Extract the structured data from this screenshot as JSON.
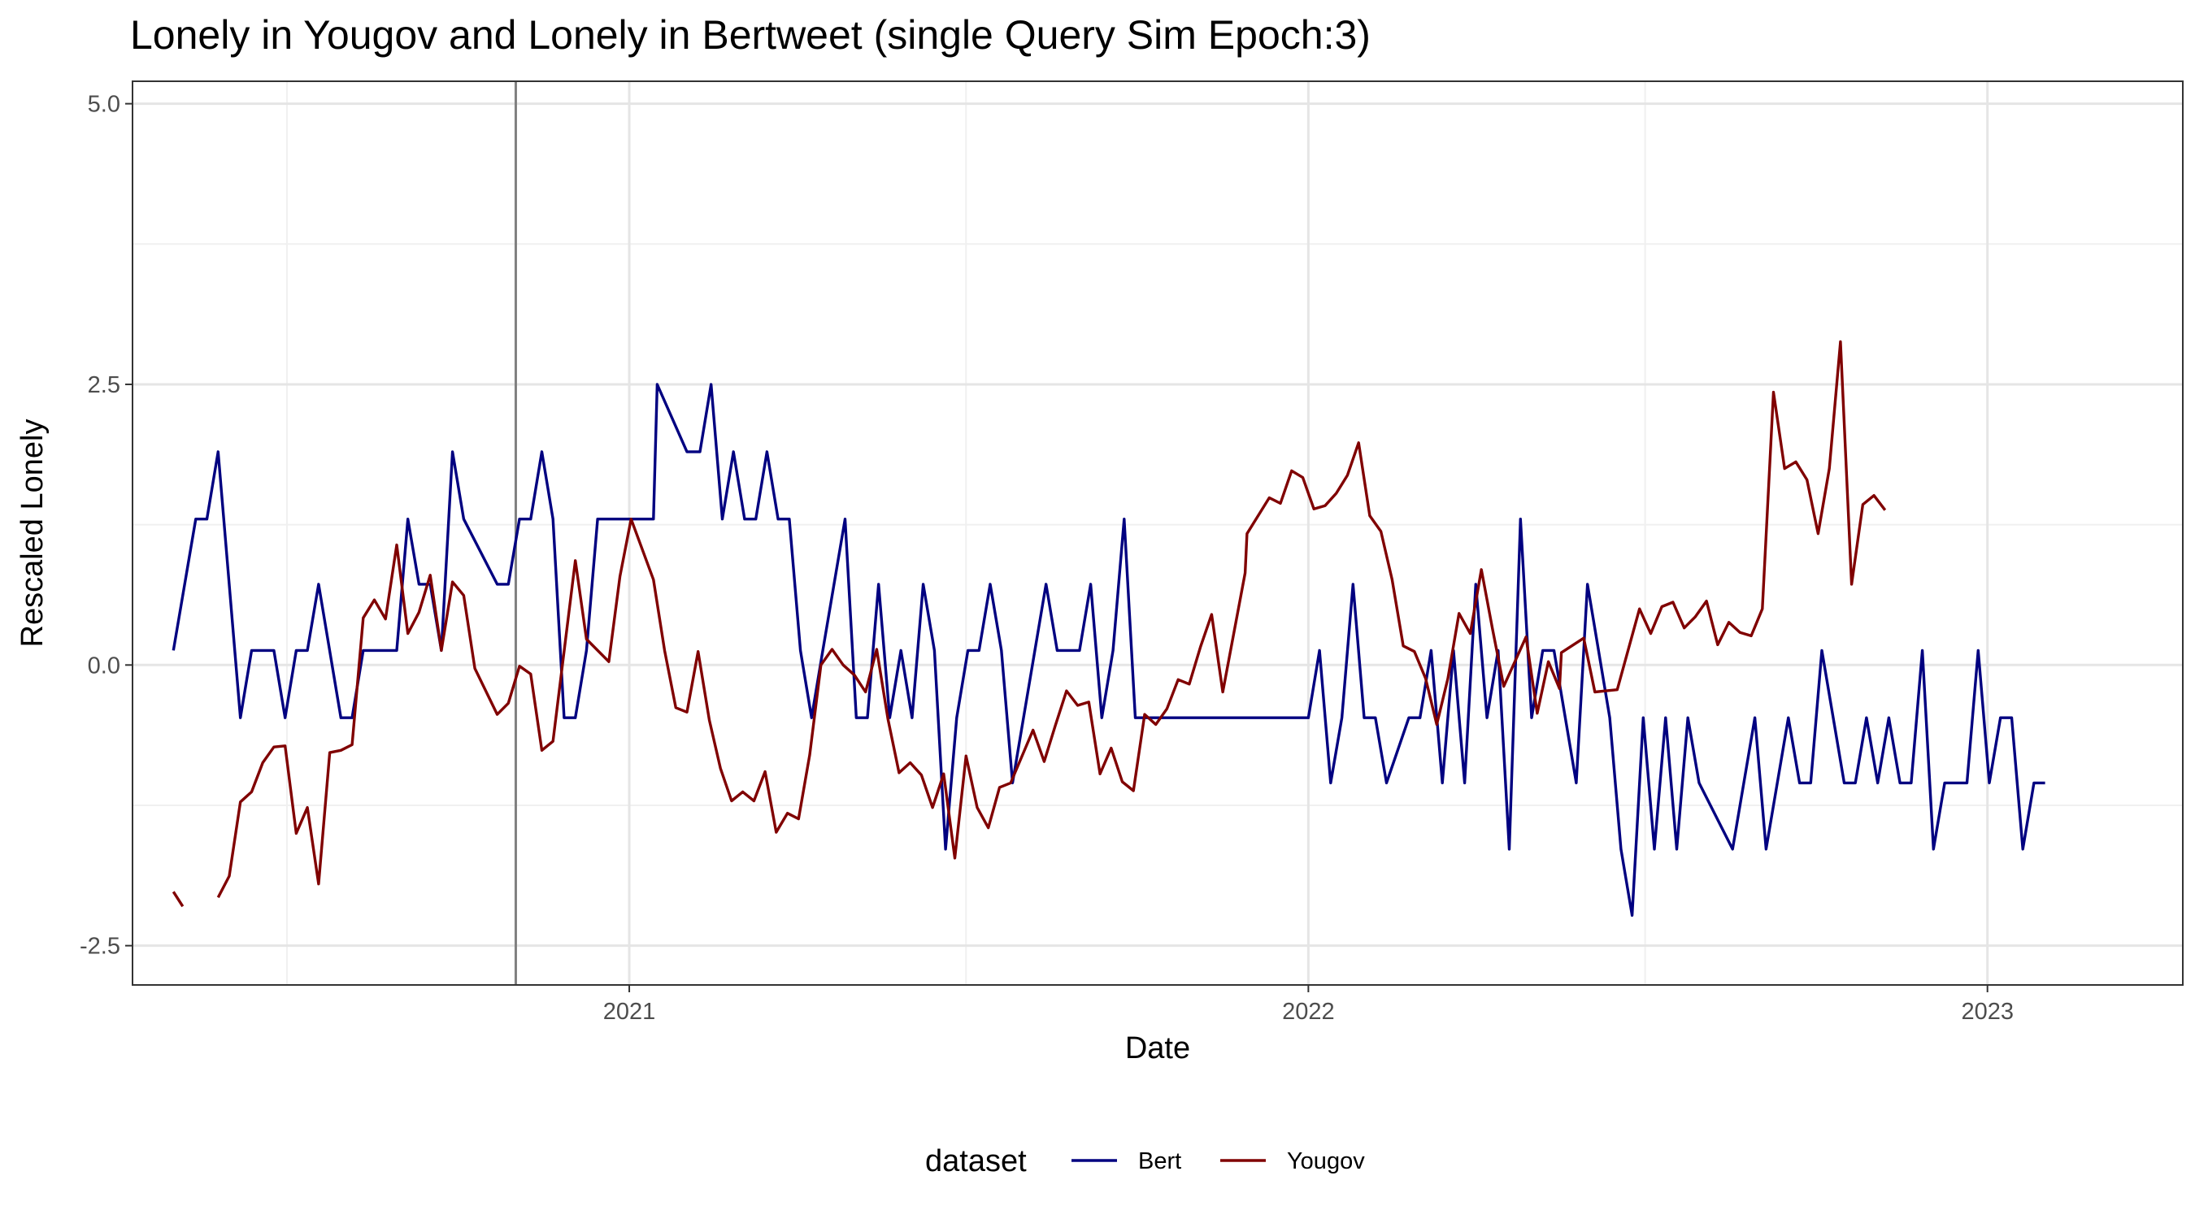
{
  "chart_data": {
    "type": "line",
    "title": "Lonely in Yougov and Lonely in Bertweet (single Query Sim Epoch:3)",
    "xlabel": "Date",
    "ylabel": "Rescaled  Lonely",
    "xlim": [
      "2020-04-09",
      "2023-04-16"
    ],
    "ylim": [
      -2.85,
      5.2
    ],
    "yticks": [
      -2.5,
      0.0,
      2.5,
      5.0
    ],
    "ytick_labels": [
      "-2.5",
      "0.0",
      "2.5",
      "5.0"
    ],
    "xticks": [
      "2021-01-01",
      "2022-01-01",
      "2023-01-01"
    ],
    "xtick_labels": [
      "2021",
      "2022",
      "2023"
    ],
    "vline": "2020-11-01",
    "grid": true,
    "legend": {
      "title": "dataset",
      "position": "bottom"
    },
    "series": [
      {
        "name": "Bert",
        "color": "#000080",
        "points": [
          [
            "2020-05-01",
            0.13
          ],
          [
            "2020-05-13",
            1.3
          ],
          [
            "2020-05-19",
            1.3
          ],
          [
            "2020-05-25",
            1.9
          ],
          [
            "2020-06-06",
            -0.47
          ],
          [
            "2020-06-12",
            0.13
          ],
          [
            "2020-06-24",
            0.13
          ],
          [
            "2020-06-30",
            -0.47
          ],
          [
            "2020-07-06",
            0.13
          ],
          [
            "2020-07-12",
            0.13
          ],
          [
            "2020-07-18",
            0.72
          ],
          [
            "2020-07-30",
            -0.47
          ],
          [
            "2020-08-05",
            -0.47
          ],
          [
            "2020-08-11",
            0.13
          ],
          [
            "2020-08-29",
            0.13
          ],
          [
            "2020-09-04",
            1.3
          ],
          [
            "2020-09-10",
            0.72
          ],
          [
            "2020-09-16",
            0.72
          ],
          [
            "2020-09-22",
            0.13
          ],
          [
            "2020-09-28",
            1.9
          ],
          [
            "2020-10-04",
            1.3
          ],
          [
            "2020-10-22",
            0.72
          ],
          [
            "2020-10-28",
            0.72
          ],
          [
            "2020-11-03",
            1.3
          ],
          [
            "2020-11-09",
            1.3
          ],
          [
            "2020-11-15",
            1.9
          ],
          [
            "2020-11-21",
            1.3
          ],
          [
            "2020-11-27",
            -0.47
          ],
          [
            "2020-12-03",
            -0.47
          ],
          [
            "2020-12-09",
            0.13
          ],
          [
            "2020-12-15",
            1.3
          ],
          [
            "2021-01-14",
            1.3
          ],
          [
            "2021-01-16",
            2.5
          ],
          [
            "2021-02-01",
            1.9
          ],
          [
            "2021-02-08",
            1.9
          ],
          [
            "2021-02-14",
            2.5
          ],
          [
            "2021-02-20",
            1.3
          ],
          [
            "2021-02-26",
            1.9
          ],
          [
            "2021-03-04",
            1.3
          ],
          [
            "2021-03-10",
            1.3
          ],
          [
            "2021-03-16",
            1.9
          ],
          [
            "2021-03-22",
            1.3
          ],
          [
            "2021-03-28",
            1.3
          ],
          [
            "2021-04-03",
            0.13
          ],
          [
            "2021-04-09",
            -0.47
          ],
          [
            "2021-04-15",
            0.13
          ],
          [
            "2021-04-27",
            1.3
          ],
          [
            "2021-05-03",
            -0.47
          ],
          [
            "2021-05-09",
            -0.47
          ],
          [
            "2021-05-15",
            0.72
          ],
          [
            "2021-05-21",
            -0.47
          ],
          [
            "2021-05-27",
            0.13
          ],
          [
            "2021-06-02",
            -0.47
          ],
          [
            "2021-06-08",
            0.72
          ],
          [
            "2021-06-14",
            0.13
          ],
          [
            "2021-06-20",
            -1.64
          ],
          [
            "2021-06-26",
            -0.47
          ],
          [
            "2021-07-02",
            0.13
          ],
          [
            "2021-07-08",
            0.13
          ],
          [
            "2021-07-14",
            0.72
          ],
          [
            "2021-07-20",
            0.13
          ],
          [
            "2021-07-26",
            -1.05
          ],
          [
            "2021-08-13",
            0.72
          ],
          [
            "2021-08-19",
            0.13
          ],
          [
            "2021-08-31",
            0.13
          ],
          [
            "2021-09-06",
            0.72
          ],
          [
            "2021-09-12",
            -0.47
          ],
          [
            "2021-09-18",
            0.13
          ],
          [
            "2021-09-24",
            1.3
          ],
          [
            "2021-09-30",
            -0.47
          ],
          [
            "2021-12-19",
            -0.47
          ],
          [
            "2022-01-01",
            -0.47
          ],
          [
            "2022-01-07",
            0.13
          ],
          [
            "2022-01-13",
            -1.05
          ],
          [
            "2022-01-19",
            -0.47
          ],
          [
            "2022-01-25",
            0.72
          ],
          [
            "2022-01-31",
            -0.47
          ],
          [
            "2022-02-06",
            -0.47
          ],
          [
            "2022-02-12",
            -1.05
          ],
          [
            "2022-02-24",
            -0.47
          ],
          [
            "2022-03-02",
            -0.47
          ],
          [
            "2022-03-08",
            0.13
          ],
          [
            "2022-03-14",
            -1.05
          ],
          [
            "2022-03-20",
            0.13
          ],
          [
            "2022-03-26",
            -1.05
          ],
          [
            "2022-04-01",
            0.72
          ],
          [
            "2022-04-07",
            -0.47
          ],
          [
            "2022-04-13",
            0.13
          ],
          [
            "2022-04-19",
            -1.64
          ],
          [
            "2022-04-25",
            1.3
          ],
          [
            "2022-05-01",
            -0.47
          ],
          [
            "2022-05-07",
            0.13
          ],
          [
            "2022-05-13",
            0.13
          ],
          [
            "2022-05-25",
            -1.05
          ],
          [
            "2022-05-31",
            0.72
          ],
          [
            "2022-06-12",
            -0.47
          ],
          [
            "2022-06-18",
            -1.64
          ],
          [
            "2022-06-24",
            -2.23
          ],
          [
            "2022-06-30",
            -0.47
          ],
          [
            "2022-07-06",
            -1.64
          ],
          [
            "2022-07-12",
            -0.47
          ],
          [
            "2022-07-18",
            -1.64
          ],
          [
            "2022-07-24",
            -0.47
          ],
          [
            "2022-07-30",
            -1.05
          ],
          [
            "2022-08-17",
            -1.64
          ],
          [
            "2022-08-29",
            -0.47
          ],
          [
            "2022-09-04",
            -1.64
          ],
          [
            "2022-09-16",
            -0.47
          ],
          [
            "2022-09-22",
            -1.05
          ],
          [
            "2022-09-28",
            -1.05
          ],
          [
            "2022-10-04",
            0.13
          ],
          [
            "2022-10-16",
            -1.05
          ],
          [
            "2022-10-22",
            -1.05
          ],
          [
            "2022-10-28",
            -0.47
          ],
          [
            "2022-11-03",
            -1.05
          ],
          [
            "2022-11-09",
            -0.47
          ],
          [
            "2022-11-15",
            -1.05
          ],
          [
            "2022-11-21",
            -1.05
          ],
          [
            "2022-11-27",
            0.13
          ],
          [
            "2022-12-03",
            -1.64
          ],
          [
            "2022-12-09",
            -1.05
          ],
          [
            "2022-12-21",
            -1.05
          ],
          [
            "2022-12-27",
            0.13
          ],
          [
            "2023-01-02",
            -1.05
          ],
          [
            "2023-01-08",
            -0.47
          ],
          [
            "2023-01-14",
            -0.47
          ],
          [
            "2023-01-20",
            -1.64
          ],
          [
            "2023-01-26",
            -1.05
          ],
          [
            "2023-02-01",
            -1.05
          ]
        ]
      },
      {
        "name": "Yougov",
        "color": "#800000",
        "points": [
          [
            "2020-05-01",
            -2.02
          ],
          [
            "2020-05-06",
            -2.15
          ],
          null,
          [
            "2020-05-25",
            -2.07
          ],
          [
            "2020-05-31",
            -1.88
          ],
          [
            "2020-06-06",
            -1.22
          ],
          [
            "2020-06-12",
            -1.13
          ],
          [
            "2020-06-18",
            -0.87
          ],
          [
            "2020-06-24",
            -0.73
          ],
          [
            "2020-06-30",
            -0.72
          ],
          [
            "2020-07-06",
            -1.5
          ],
          [
            "2020-07-12",
            -1.27
          ],
          [
            "2020-07-18",
            -1.95
          ],
          [
            "2020-07-24",
            -0.78
          ],
          [
            "2020-07-30",
            -0.76
          ],
          [
            "2020-08-05",
            -0.71
          ],
          [
            "2020-08-11",
            0.42
          ],
          [
            "2020-08-17",
            0.58
          ],
          [
            "2020-08-23",
            0.41
          ],
          [
            "2020-08-29",
            1.07
          ],
          [
            "2020-09-04",
            0.28
          ],
          [
            "2020-09-10",
            0.47
          ],
          [
            "2020-09-16",
            0.8
          ],
          [
            "2020-09-22",
            0.13
          ],
          [
            "2020-09-28",
            0.74
          ],
          [
            "2020-10-04",
            0.62
          ],
          [
            "2020-10-10",
            -0.03
          ],
          [
            "2020-10-22",
            -0.44
          ],
          [
            "2020-10-28",
            -0.34
          ],
          [
            "2020-11-03",
            -0.01
          ],
          [
            "2020-11-09",
            -0.08
          ],
          [
            "2020-11-15",
            -0.76
          ],
          [
            "2020-11-21",
            -0.68
          ],
          [
            "2020-12-03",
            0.93
          ],
          [
            "2020-12-09",
            0.23
          ],
          [
            "2020-12-21",
            0.03
          ],
          [
            "2020-12-27",
            0.79
          ],
          [
            "2021-01-02",
            1.3
          ],
          [
            "2021-01-14",
            0.76
          ],
          [
            "2021-01-20",
            0.13
          ],
          [
            "2021-01-26",
            -0.38
          ],
          [
            "2021-02-01",
            -0.42
          ],
          [
            "2021-02-07",
            0.12
          ],
          [
            "2021-02-13",
            -0.49
          ],
          [
            "2021-02-19",
            -0.92
          ],
          [
            "2021-02-25",
            -1.21
          ],
          [
            "2021-03-03",
            -1.13
          ],
          [
            "2021-03-09",
            -1.21
          ],
          [
            "2021-03-15",
            -0.95
          ],
          [
            "2021-03-21",
            -1.49
          ],
          [
            "2021-03-27",
            -1.32
          ],
          [
            "2021-04-02",
            -1.37
          ],
          [
            "2021-04-08",
            -0.8
          ],
          [
            "2021-04-14",
            0.0
          ],
          [
            "2021-04-20",
            0.14
          ],
          [
            "2021-04-26",
            0.0
          ],
          [
            "2021-05-02",
            -0.09
          ],
          [
            "2021-05-08",
            -0.24
          ],
          [
            "2021-05-14",
            0.14
          ],
          [
            "2021-05-20",
            -0.48
          ],
          [
            "2021-05-26",
            -0.96
          ],
          [
            "2021-06-01",
            -0.87
          ],
          [
            "2021-06-07",
            -0.98
          ],
          [
            "2021-06-13",
            -1.27
          ],
          [
            "2021-06-19",
            -0.97
          ],
          [
            "2021-06-25",
            -1.72
          ],
          [
            "2021-07-01",
            -0.81
          ],
          [
            "2021-07-07",
            -1.27
          ],
          [
            "2021-07-13",
            -1.45
          ],
          [
            "2021-07-19",
            -1.09
          ],
          [
            "2021-07-25",
            -1.05
          ],
          [
            "2021-08-06",
            -0.58
          ],
          [
            "2021-08-12",
            -0.86
          ],
          [
            "2021-08-18",
            -0.54
          ],
          [
            "2021-08-24",
            -0.23
          ],
          [
            "2021-08-30",
            -0.36
          ],
          [
            "2021-09-05",
            -0.33
          ],
          [
            "2021-09-11",
            -0.97
          ],
          [
            "2021-09-17",
            -0.74
          ],
          [
            "2021-09-23",
            -1.04
          ],
          [
            "2021-09-29",
            -1.12
          ],
          [
            "2021-10-05",
            -0.44
          ],
          [
            "2021-10-11",
            -0.53
          ],
          [
            "2021-10-17",
            -0.39
          ],
          [
            "2021-10-23",
            -0.13
          ],
          [
            "2021-10-29",
            -0.17
          ],
          [
            "2021-11-04",
            0.16
          ],
          [
            "2021-11-10",
            0.45
          ],
          [
            "2021-11-16",
            -0.24
          ],
          [
            "2021-11-28",
            0.82
          ],
          [
            "2021-11-29",
            1.17
          ],
          [
            "2021-12-11",
            1.49
          ],
          [
            "2021-12-17",
            1.44
          ],
          [
            "2021-12-23",
            1.73
          ],
          [
            "2021-12-29",
            1.67
          ],
          [
            "2022-01-04",
            1.39
          ],
          [
            "2022-01-10",
            1.42
          ],
          [
            "2022-01-16",
            1.53
          ],
          [
            "2022-01-22",
            1.69
          ],
          [
            "2022-01-28",
            1.98
          ],
          [
            "2022-02-03",
            1.33
          ],
          [
            "2022-02-09",
            1.19
          ],
          [
            "2022-02-15",
            0.76
          ],
          [
            "2022-02-21",
            0.17
          ],
          [
            "2022-02-27",
            0.12
          ],
          [
            "2022-03-05",
            -0.12
          ],
          [
            "2022-03-11",
            -0.53
          ],
          [
            "2022-03-17",
            -0.12
          ],
          [
            "2022-03-23",
            0.46
          ],
          [
            "2022-03-29",
            0.28
          ],
          [
            "2022-04-04",
            0.85
          ],
          [
            "2022-04-10",
            0.32
          ],
          [
            "2022-04-16",
            -0.19
          ],
          [
            "2022-04-28",
            0.25
          ],
          [
            "2022-05-04",
            -0.43
          ],
          [
            "2022-05-10",
            0.03
          ],
          [
            "2022-05-16",
            -0.21
          ],
          [
            "2022-05-17",
            0.11
          ],
          [
            "2022-05-29",
            0.24
          ],
          [
            "2022-06-04",
            -0.24
          ],
          [
            "2022-06-10",
            -0.23
          ],
          [
            "2022-06-16",
            -0.22
          ],
          [
            "2022-06-28",
            0.5
          ],
          [
            "2022-07-04",
            0.28
          ],
          [
            "2022-07-10",
            0.52
          ],
          [
            "2022-07-16",
            0.56
          ],
          [
            "2022-07-22",
            0.33
          ],
          [
            "2022-07-28",
            0.43
          ],
          [
            "2022-08-03",
            0.57
          ],
          [
            "2022-08-09",
            0.18
          ],
          [
            "2022-08-15",
            0.38
          ],
          [
            "2022-08-21",
            0.29
          ],
          [
            "2022-08-27",
            0.26
          ],
          [
            "2022-09-02",
            0.5
          ],
          [
            "2022-09-08",
            2.43
          ],
          [
            "2022-09-14",
            1.75
          ],
          [
            "2022-09-20",
            1.81
          ],
          [
            "2022-09-26",
            1.65
          ],
          [
            "2022-10-02",
            1.17
          ],
          [
            "2022-10-08",
            1.75
          ],
          [
            "2022-10-14",
            2.88
          ],
          [
            "2022-10-20",
            0.72
          ],
          [
            "2022-10-26",
            1.43
          ],
          [
            "2022-11-01",
            1.51
          ],
          [
            "2022-11-07",
            1.38
          ]
        ]
      }
    ]
  }
}
